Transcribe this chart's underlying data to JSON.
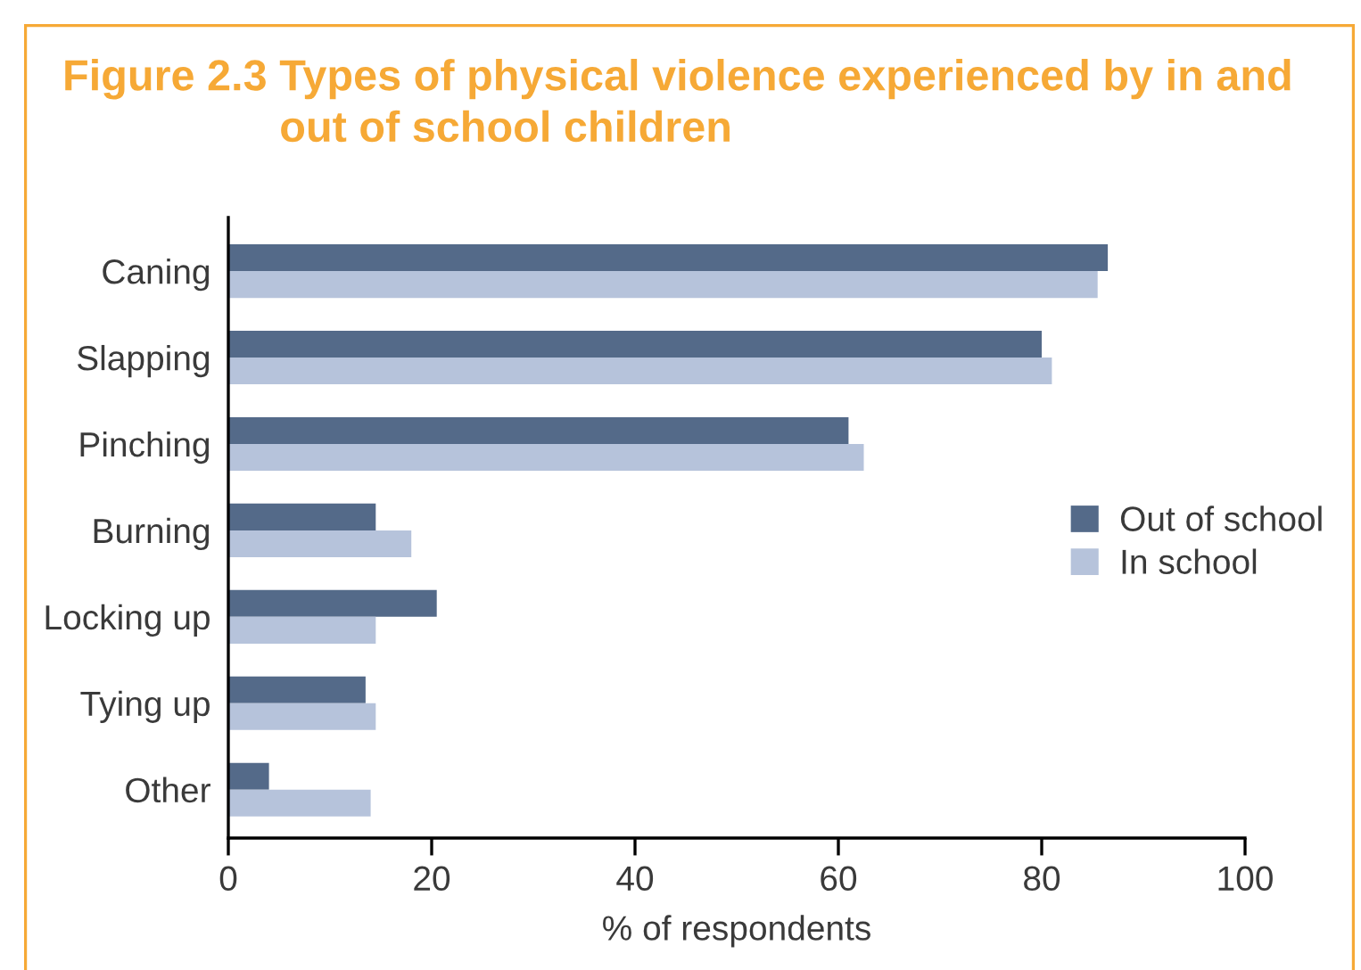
{
  "chart_data": {
    "type": "bar",
    "orientation": "horizontal",
    "title": "Figure 2.3 Types of physical violence experienced by in and out of school children",
    "xlabel": "% of respondents",
    "categories": [
      "Caning",
      "Slapping",
      "Pinching",
      "Burning",
      "Locking up",
      "Tying up",
      "Other"
    ],
    "series": [
      {
        "name": "Out of school",
        "color": "#546a89",
        "values": [
          86.5,
          80,
          61,
          14.5,
          20.5,
          13.5,
          4
        ]
      },
      {
        "name": "In school",
        "color": "#b6c3db",
        "values": [
          85.5,
          81,
          62.5,
          18,
          14.5,
          14.5,
          14
        ]
      }
    ],
    "xlim": [
      0,
      100
    ],
    "xticks": [
      0,
      20,
      40,
      60,
      80,
      100
    ],
    "legend": "right"
  }
}
